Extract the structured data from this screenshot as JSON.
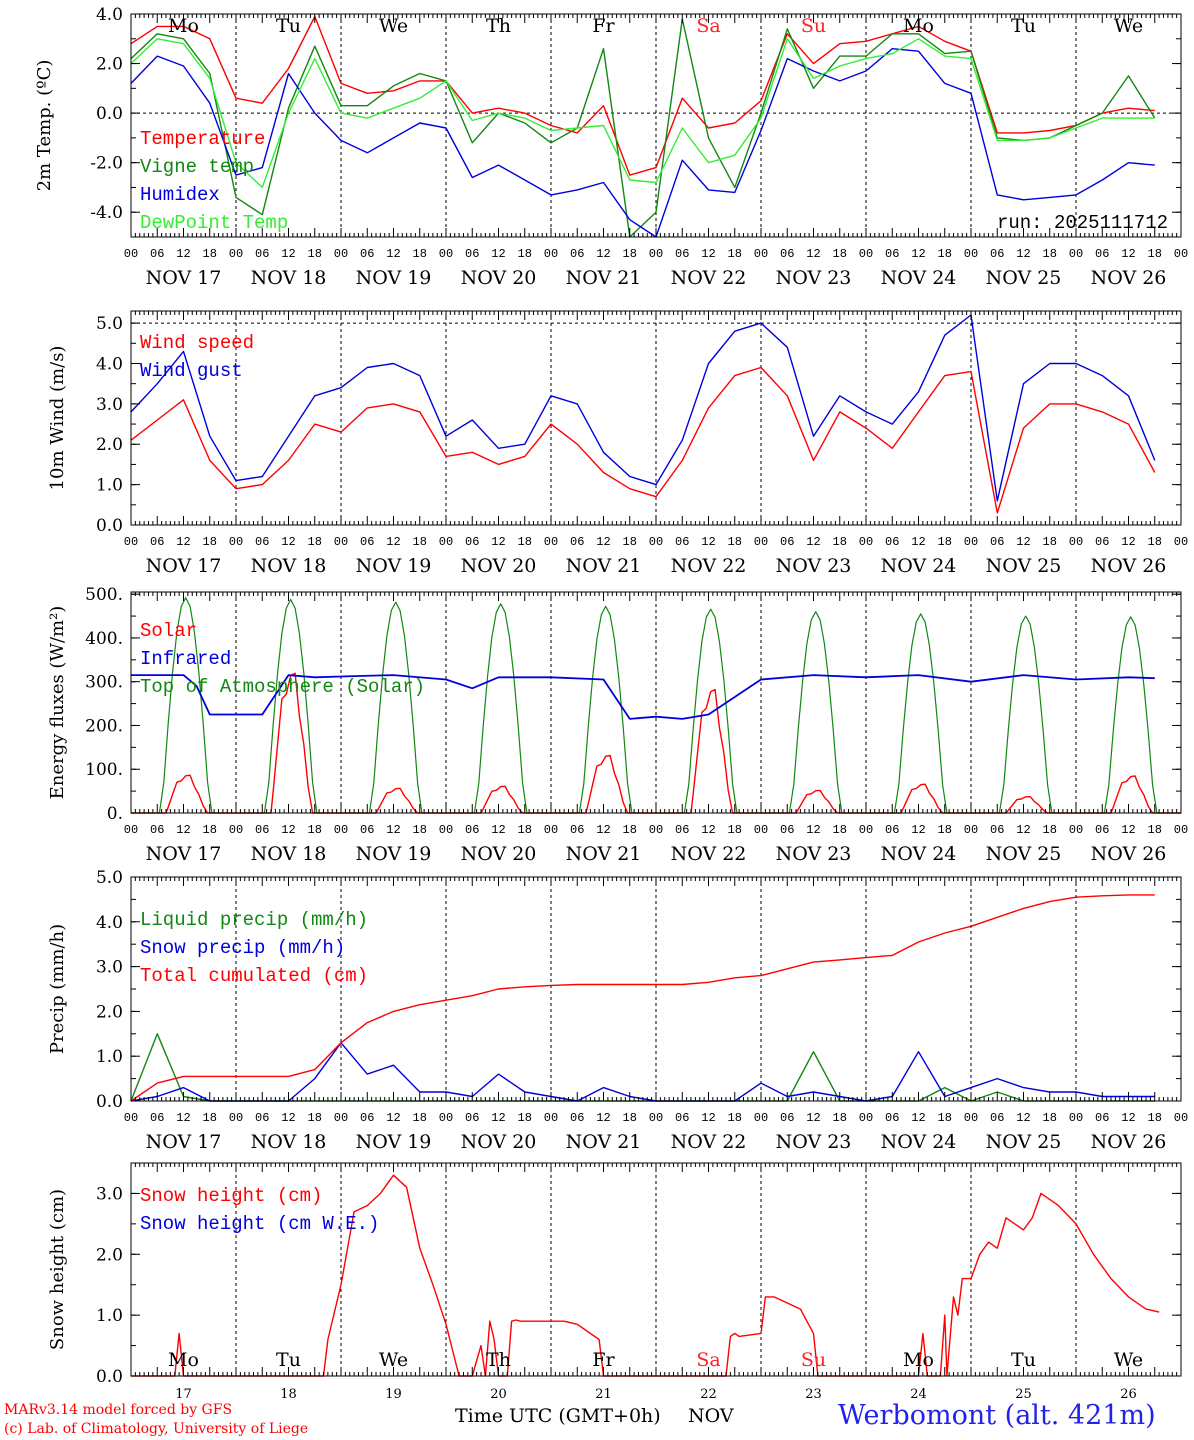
{
  "station_title": "Werbomont (alt. 421m)",
  "footer_left_1": "MARv3.14 model forced by GFS",
  "footer_left_2": "(c) Lab. of Climatology, University of Liege",
  "time_label": "Time UTC (GMT+0h)",
  "month_label": "NOV",
  "colors": {
    "red": "#ff0000",
    "green": "#118811",
    "blue": "#0000dd",
    "light_green": "#33ee33",
    "title_blue": "#2222ee",
    "weekend": "#ff2222"
  },
  "day_names": [
    "Mo",
    "Tu",
    "We",
    "Th",
    "Fr",
    "Sa",
    "Su",
    "Mo",
    "Tu",
    "We"
  ],
  "weekend_flags": [
    false,
    false,
    false,
    false,
    false,
    true,
    true,
    false,
    false,
    false
  ],
  "date_labels": [
    "NOV 17",
    "NOV 18",
    "NOV 19",
    "NOV 20",
    "NOV 21",
    "NOV 22",
    "NOV 23",
    "NOV 24",
    "NOV 25",
    "NOV 26"
  ],
  "day_numbers": [
    "17",
    "18",
    "19",
    "20",
    "21",
    "22",
    "23",
    "24",
    "25",
    "26"
  ],
  "hour_labels": [
    "00",
    "06",
    "12",
    "18"
  ],
  "final_hour_label": "00",
  "chart_data": [
    {
      "id": "temp",
      "type": "line",
      "ylabel": "2m Temp. (ºC)",
      "ylim": [
        -5,
        4
      ],
      "yticks": [
        4.0,
        2.0,
        0.0,
        -2.0,
        -4.0
      ],
      "ytick_labels": [
        "4.0",
        "2.0",
        "0.0",
        "-2.0",
        "-4.0"
      ],
      "ref_lines": [
        0
      ],
      "annotation": "run: 2025111712",
      "legend": [
        "Temperature",
        "Vigne temp",
        "Humidex",
        "DewPoint Temp"
      ],
      "x_hours": [
        0,
        6,
        12,
        18,
        24,
        30,
        36,
        42,
        48,
        54,
        60,
        66,
        72,
        78,
        84,
        90,
        96,
        102,
        108,
        114,
        120,
        126,
        132,
        138,
        144,
        150,
        156,
        162,
        168,
        174,
        180,
        186,
        192,
        198,
        204,
        210,
        216,
        222,
        228,
        234
      ],
      "series": [
        {
          "name": "Temperature",
          "color": "red",
          "values": [
            2.8,
            3.5,
            3.5,
            3.0,
            0.6,
            0.4,
            1.8,
            3.9,
            1.2,
            0.8,
            0.9,
            1.3,
            1.3,
            0.0,
            0.2,
            0.0,
            -0.5,
            -0.8,
            0.3,
            -2.5,
            -2.2,
            0.6,
            -0.6,
            -0.4,
            0.5,
            3.2,
            2.0,
            2.8,
            2.9,
            3.2,
            3.5,
            2.9,
            2.5,
            -0.8,
            -0.8,
            -0.7,
            -0.5,
            0.0,
            0.2,
            0.1
          ]
        },
        {
          "name": "Vigne temp",
          "color": "green",
          "values": [
            2.2,
            3.2,
            3.0,
            1.6,
            -3.4,
            -4.1,
            0.2,
            2.7,
            0.3,
            0.3,
            1.1,
            1.6,
            1.3,
            -1.2,
            0.0,
            -0.4,
            -1.2,
            -0.6,
            2.6,
            -5.0,
            -4.0,
            3.8,
            -1.0,
            -3.0,
            0.0,
            3.4,
            1.0,
            2.3,
            2.3,
            3.2,
            3.2,
            2.4,
            2.5,
            -1.0,
            -1.1,
            -1.0,
            -0.5,
            0.0,
            1.5,
            -0.2
          ]
        },
        {
          "name": "Humidex",
          "color": "blue",
          "values": [
            1.2,
            2.3,
            1.9,
            0.4,
            -2.5,
            -2.2,
            1.6,
            0.0,
            -1.1,
            -1.6,
            -1.0,
            -0.4,
            -0.6,
            -2.6,
            -2.1,
            -2.7,
            -3.3,
            -3.1,
            -2.8,
            -4.3,
            -5.0,
            -1.9,
            -3.1,
            -3.2,
            -0.7,
            2.2,
            1.7,
            1.3,
            1.7,
            2.6,
            2.5,
            1.2,
            0.8,
            -3.3,
            -3.5,
            -3.4,
            -3.3,
            -2.7,
            -2.0,
            -2.1
          ]
        },
        {
          "name": "DewPoint Temp",
          "color": "light_green",
          "values": [
            2.0,
            3.0,
            2.8,
            1.4,
            -2.0,
            -3.0,
            0.0,
            2.2,
            0.0,
            -0.2,
            0.2,
            0.6,
            1.3,
            -0.3,
            0.0,
            -0.2,
            -0.7,
            -0.6,
            -0.5,
            -2.7,
            -2.8,
            -0.6,
            -2.0,
            -1.7,
            -0.2,
            3.0,
            1.4,
            1.9,
            2.2,
            2.4,
            3.0,
            2.3,
            2.2,
            -1.1,
            -1.1,
            -1.0,
            -0.6,
            -0.2,
            -0.2,
            -0.2
          ]
        }
      ]
    },
    {
      "id": "wind",
      "type": "line",
      "ylabel": "10m Wind (m/s)",
      "ylim": [
        0,
        5.3
      ],
      "yticks": [
        5.0,
        4.0,
        3.0,
        2.0,
        1.0,
        0.0
      ],
      "ytick_labels": [
        "5.0",
        "4.0",
        "3.0",
        "2.0",
        "1.0",
        "0.0"
      ],
      "ref_lines": [
        5.0
      ],
      "legend": [
        "Wind speed",
        "Wind gust"
      ],
      "x_hours": [
        0,
        6,
        12,
        18,
        24,
        30,
        36,
        42,
        48,
        54,
        60,
        66,
        72,
        78,
        84,
        90,
        96,
        102,
        108,
        114,
        120,
        126,
        132,
        138,
        144,
        150,
        156,
        162,
        168,
        174,
        180,
        186,
        192,
        198,
        204,
        210,
        216,
        222,
        228,
        234
      ],
      "series": [
        {
          "name": "Wind speed",
          "color": "red",
          "values": [
            2.1,
            2.6,
            3.1,
            1.6,
            0.9,
            1.0,
            1.6,
            2.5,
            2.3,
            2.9,
            3.0,
            2.8,
            1.7,
            1.8,
            1.5,
            1.7,
            2.5,
            2.0,
            1.3,
            0.9,
            0.7,
            1.6,
            2.9,
            3.7,
            3.9,
            3.2,
            1.6,
            2.8,
            2.4,
            1.9,
            2.8,
            3.7,
            3.8,
            0.3,
            2.4,
            3.0,
            3.0,
            2.8,
            2.5,
            1.3
          ]
        },
        {
          "name": "Wind gust",
          "color": "blue",
          "values": [
            2.8,
            3.5,
            4.3,
            2.2,
            1.1,
            1.2,
            2.2,
            3.2,
            3.4,
            3.9,
            4.0,
            3.7,
            2.2,
            2.6,
            1.9,
            2.0,
            3.2,
            3.0,
            1.8,
            1.2,
            1.0,
            2.1,
            4.0,
            4.8,
            5.0,
            4.4,
            2.2,
            3.2,
            2.8,
            2.5,
            3.3,
            4.7,
            5.2,
            0.6,
            3.5,
            4.0,
            4.0,
            3.7,
            3.2,
            1.6
          ]
        }
      ]
    },
    {
      "id": "flux",
      "type": "line",
      "ylabel": "Energy fluxes (W/m²)",
      "ylim": [
        0,
        505
      ],
      "yticks": [
        500,
        400,
        300,
        200,
        100,
        0
      ],
      "ytick_labels": [
        "500.",
        "400.",
        "300.",
        "200.",
        "100.",
        "0."
      ],
      "ref_lines": [],
      "legend": [
        "Solar",
        "Infrared",
        "Top of Atmosphere (Solar)"
      ],
      "toa_peaks": [
        492,
        488,
        482,
        478,
        472,
        466,
        460,
        455,
        450,
        448
      ],
      "solar_peaks": [
        92,
        340,
        60,
        65,
        140,
        300,
        55,
        70,
        40,
        90
      ],
      "infrared": {
        "hours": [
          0,
          12,
          15,
          18,
          24,
          30,
          36,
          42,
          48,
          60,
          72,
          78,
          84,
          96,
          108,
          114,
          120,
          126,
          132,
          144,
          156,
          168,
          180,
          192,
          204,
          216,
          228,
          234
        ],
        "values": [
          315,
          315,
          290,
          225,
          225,
          225,
          315,
          310,
          312,
          315,
          305,
          285,
          310,
          310,
          305,
          215,
          220,
          215,
          225,
          305,
          315,
          310,
          315,
          300,
          315,
          305,
          310,
          308
        ]
      }
    },
    {
      "id": "precip",
      "type": "line",
      "ylabel": "Precip (mm/h)",
      "ylim": [
        0,
        5.0
      ],
      "yticks": [
        5.0,
        4.0,
        3.0,
        2.0,
        1.0,
        0.0
      ],
      "ytick_labels": [
        "5.0",
        "4.0",
        "3.0",
        "2.0",
        "1.0",
        "0.0"
      ],
      "ref_lines": [],
      "legend": [
        "Liquid precip (mm/h)",
        "Snow precip (mm/h)",
        "Total cumulated (cm)"
      ],
      "x_hours": [
        0,
        6,
        12,
        18,
        24,
        30,
        36,
        42,
        48,
        54,
        60,
        66,
        72,
        78,
        84,
        90,
        96,
        102,
        108,
        114,
        120,
        126,
        132,
        138,
        144,
        150,
        156,
        162,
        168,
        174,
        180,
        186,
        192,
        198,
        204,
        210,
        216,
        222,
        228,
        234
      ],
      "series": [
        {
          "name": "Liquid precip (mm/h)",
          "color": "green",
          "values": [
            0.0,
            1.5,
            0.1,
            0.0,
            0.0,
            0.0,
            0.0,
            0.0,
            0.0,
            0.0,
            0.0,
            0.0,
            0.0,
            0.0,
            0.0,
            0.0,
            0.0,
            0.0,
            0.0,
            0.0,
            0.0,
            0.0,
            0.0,
            0.0,
            0.0,
            0.0,
            1.1,
            0.0,
            0.0,
            0.0,
            0.0,
            0.3,
            0.0,
            0.2,
            0.0,
            0.0,
            0.0,
            0.0,
            0.0,
            0.0
          ]
        },
        {
          "name": "Snow precip (mm/h)",
          "color": "blue",
          "values": [
            0.0,
            0.1,
            0.3,
            0.0,
            0.0,
            0.0,
            0.0,
            0.5,
            1.3,
            0.6,
            0.8,
            0.2,
            0.2,
            0.1,
            0.6,
            0.2,
            0.1,
            0.0,
            0.3,
            0.1,
            0.0,
            0.0,
            0.0,
            0.0,
            0.4,
            0.1,
            0.2,
            0.1,
            0.0,
            0.1,
            1.1,
            0.1,
            0.3,
            0.5,
            0.3,
            0.2,
            0.2,
            0.1,
            0.1,
            0.1
          ]
        },
        {
          "name": "Total cumulated (cm)",
          "color": "red",
          "values": [
            0.0,
            0.4,
            0.55,
            0.55,
            0.55,
            0.55,
            0.55,
            0.7,
            1.3,
            1.75,
            2.0,
            2.15,
            2.25,
            2.35,
            2.5,
            2.55,
            2.58,
            2.6,
            2.6,
            2.6,
            2.6,
            2.6,
            2.65,
            2.75,
            2.8,
            2.95,
            3.1,
            3.15,
            3.2,
            3.25,
            3.55,
            3.75,
            3.9,
            4.1,
            4.3,
            4.45,
            4.55,
            4.58,
            4.6,
            4.6
          ]
        }
      ]
    },
    {
      "id": "snow",
      "type": "line",
      "ylabel": "Snow height (cm)",
      "ylim": [
        0,
        3.5
      ],
      "yticks": [
        3.0,
        2.0,
        1.0,
        0.0
      ],
      "ytick_labels": [
        "3.0",
        "2.0",
        "1.0",
        "0.0"
      ],
      "ref_lines": [],
      "legend": [
        "Snow height (cm)",
        "Snow height (cm W.E.)"
      ],
      "series": [
        {
          "name": "Snow height (cm)",
          "color": "red",
          "hours": [
            0,
            10,
            11,
            12,
            13,
            44,
            45,
            48,
            51,
            54,
            57,
            60,
            63,
            66,
            69,
            72,
            75,
            78,
            80,
            81,
            82,
            83,
            84,
            86,
            87,
            88,
            89,
            96,
            99,
            102,
            107,
            108,
            120,
            136,
            137,
            138,
            139,
            144,
            145,
            146,
            147,
            150,
            153,
            156,
            157,
            180,
            181,
            182,
            183,
            185,
            186,
            186.5,
            188,
            189,
            190,
            192,
            194,
            196,
            198,
            200,
            202,
            204,
            206,
            208,
            212,
            216,
            220,
            224,
            228,
            232,
            235
          ],
          "values": [
            0,
            0,
            0.7,
            0,
            0,
            0,
            0.6,
            1.5,
            2.7,
            2.8,
            3.0,
            3.3,
            3.1,
            2.1,
            1.5,
            0.85,
            0,
            0,
            0.5,
            0,
            0.9,
            0.6,
            0,
            0,
            0.9,
            0.92,
            0.9,
            0.9,
            0.9,
            0.85,
            0.6,
            0,
            0,
            0,
            0.65,
            0.7,
            0.65,
            0.7,
            1.3,
            1.3,
            1.3,
            1.2,
            1.1,
            0.7,
            0,
            0,
            0.7,
            0,
            0,
            0,
            1.0,
            0,
            1.3,
            1.0,
            1.6,
            1.6,
            2.0,
            2.2,
            2.1,
            2.6,
            2.5,
            2.4,
            2.6,
            3.0,
            2.8,
            2.5,
            2.0,
            1.6,
            1.3,
            1.1,
            1.05
          ]
        }
      ]
    }
  ]
}
